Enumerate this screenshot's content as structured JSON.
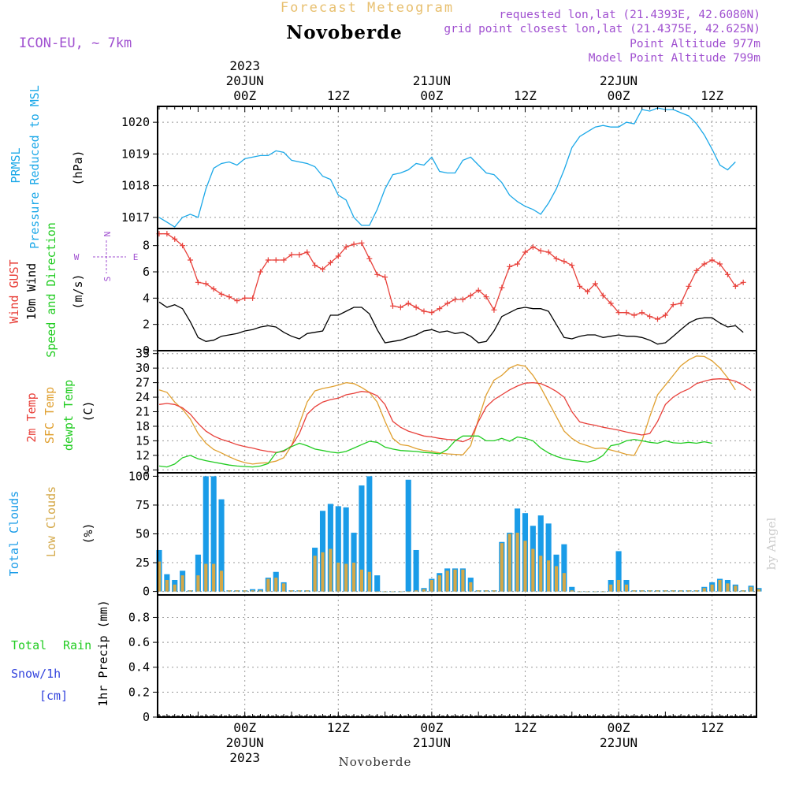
{
  "header": {
    "top_title": "Forecast Meteogram",
    "location": "Novoberde",
    "model": "ICON-EU, ~ 7km",
    "requested": "requested lon,lat (21.4393E, 42.6080N)",
    "grid_point": "grid point closest lon,lat (21.4375E, 42.625N)",
    "point_altitude": "Point Altitude 977m",
    "model_altitude": "Model Point Altitude 799m",
    "footer_location": "Novoberde",
    "watermark": "by Angel"
  },
  "time_axis": {
    "top_labels": [
      {
        "hour": 6,
        "lines": [
          "2023",
          "20JUN",
          "00Z"
        ]
      },
      {
        "hour": 18,
        "lines": [
          "12Z"
        ]
      },
      {
        "hour": 30,
        "lines": [
          "21JUN",
          "00Z"
        ]
      },
      {
        "hour": 42,
        "lines": [
          "12Z"
        ]
      },
      {
        "hour": 54,
        "lines": [
          "22JUN",
          "00Z"
        ]
      },
      {
        "hour": 66,
        "lines": [
          "12Z"
        ]
      }
    ],
    "bottom_labels": [
      {
        "hour": 6,
        "lines": [
          "00Z",
          "20JUN",
          "2023"
        ]
      },
      {
        "hour": 18,
        "lines": [
          "12Z"
        ]
      },
      {
        "hour": 30,
        "lines": [
          "00Z",
          "21JUN"
        ]
      },
      {
        "hour": 42,
        "lines": [
          "12Z"
        ]
      },
      {
        "hour": 54,
        "lines": [
          "00Z",
          "22JUN"
        ]
      },
      {
        "hour": 66,
        "lines": [
          "12Z"
        ]
      }
    ],
    "hour_range": [
      -5.2,
      71.7
    ]
  },
  "panel_labels": {
    "pressure": [
      "PRMSL",
      "Pressure Reduced to MSL",
      "(hPa)"
    ],
    "wind": [
      "Wind GUST",
      "10m Wind",
      "Speed and Direction",
      "(m/s)"
    ],
    "compass": [
      "N",
      "W",
      "E",
      "S"
    ],
    "temp": [
      "2m Temp",
      "SFC Temp",
      "dewpt Temp",
      "(C)"
    ],
    "clouds": [
      "Total Clouds",
      "Low Clouds",
      "(%)"
    ],
    "precip": [
      "Total",
      "Rain",
      "Snow/1h",
      "[cm]",
      "1hr Precip (mm)"
    ]
  },
  "colors": {
    "pressure": "#1ba8e8",
    "gust": "#e8403a",
    "wind": "#000000",
    "temp2m": "#e8403a",
    "sfc": "#e0a030",
    "dewpt": "#22cc22",
    "total_clouds": "#1a9ce8",
    "low_clouds": "#d4a848",
    "rain": "#22cc22",
    "snow": "#3344dd",
    "label_purple": "#a050d0",
    "title_orange": "#e8c070"
  },
  "chart_data": [
    {
      "id": "pressure",
      "type": "line",
      "ylabel": "(hPa)",
      "yticks": [
        1017,
        1018,
        1019,
        1020
      ],
      "ylim": [
        1016.65,
        1020.5
      ],
      "grid": true,
      "series": [
        {
          "name": "PRMSL",
          "x0": -5,
          "dx": 1,
          "values": [
            1017.0,
            1016.85,
            1016.7,
            1017.0,
            1017.1,
            1017.0,
            1017.9,
            1018.55,
            1018.7,
            1018.75,
            1018.65,
            1018.85,
            1018.9,
            1018.95,
            1018.95,
            1019.1,
            1019.05,
            1018.8,
            1018.75,
            1018.7,
            1018.6,
            1018.3,
            1018.2,
            1017.7,
            1017.55,
            1017.0,
            1016.75,
            1016.75,
            1017.25,
            1017.9,
            1018.35,
            1018.4,
            1018.5,
            1018.7,
            1018.65,
            1018.9,
            1018.45,
            1018.4,
            1018.4,
            1018.8,
            1018.9,
            1018.65,
            1018.4,
            1018.35,
            1018.1,
            1017.7,
            1017.5,
            1017.35,
            1017.25,
            1017.1,
            1017.45,
            1017.9,
            1018.5,
            1019.2,
            1019.55,
            1019.7,
            1019.85,
            1019.9,
            1019.85,
            1019.85,
            1020.0,
            1019.95,
            1020.4,
            1020.35,
            1020.45,
            1020.4,
            1020.4,
            1020.3,
            1020.2,
            1019.95,
            1019.6,
            1019.15,
            1018.65,
            1018.5,
            1018.75
          ]
        }
      ]
    },
    {
      "id": "wind",
      "type": "line",
      "ylabel": "(m/s)",
      "yticks": [
        0,
        2,
        4,
        6,
        8
      ],
      "ylim": [
        0,
        9.3
      ],
      "grid": true,
      "series": [
        {
          "name": "Wind GUST",
          "x0": -5,
          "dx": 1,
          "values": [
            8.9,
            8.9,
            8.5,
            8.0,
            6.9,
            5.2,
            5.1,
            4.7,
            4.3,
            4.1,
            3.8,
            4.0,
            4.0,
            6.0,
            6.9,
            6.9,
            6.9,
            7.3,
            7.3,
            7.5,
            6.5,
            6.2,
            6.7,
            7.2,
            7.9,
            8.1,
            8.2,
            7.0,
            5.8,
            5.6,
            3.4,
            3.3,
            3.6,
            3.3,
            3.0,
            2.9,
            3.2,
            3.6,
            3.9,
            3.9,
            4.2,
            4.6,
            4.1,
            3.1,
            4.8,
            6.4,
            6.6,
            7.5,
            7.9,
            7.6,
            7.5,
            7.0,
            6.8,
            6.5,
            4.9,
            4.5,
            5.1,
            4.2,
            3.6,
            2.9,
            2.9,
            2.7,
            2.9,
            2.6,
            2.4,
            2.7,
            3.5,
            3.6,
            4.9,
            6.1,
            6.6,
            6.9,
            6.6,
            5.8,
            4.9,
            5.2
          ]
        },
        {
          "name": "10m Wind",
          "x0": -5,
          "dx": 1,
          "values": [
            3.7,
            3.3,
            3.5,
            3.2,
            2.2,
            1.0,
            0.7,
            0.8,
            1.1,
            1.2,
            1.3,
            1.5,
            1.6,
            1.8,
            1.9,
            1.8,
            1.4,
            1.1,
            0.9,
            1.3,
            1.4,
            1.5,
            2.7,
            2.7,
            3.0,
            3.3,
            3.3,
            2.8,
            1.6,
            0.6,
            0.7,
            0.8,
            1.0,
            1.2,
            1.5,
            1.6,
            1.4,
            1.5,
            1.3,
            1.4,
            1.1,
            0.6,
            0.7,
            1.5,
            2.6,
            2.9,
            3.2,
            3.3,
            3.2,
            3.2,
            3.0,
            2.0,
            1.0,
            0.9,
            1.1,
            1.2,
            1.2,
            1.0,
            1.1,
            1.2,
            1.1,
            1.1,
            1.0,
            0.8,
            0.5,
            0.6,
            1.1,
            1.6,
            2.1,
            2.4,
            2.5,
            2.5,
            2.1,
            1.8,
            1.9,
            1.4
          ]
        }
      ]
    },
    {
      "id": "temperature",
      "type": "line",
      "ylabel": "(C)",
      "yticks": [
        9,
        12,
        15,
        18,
        21,
        24,
        27,
        30,
        33
      ],
      "ylim": [
        8.4,
        33.6
      ],
      "grid": true,
      "series": [
        {
          "name": "2m Temp",
          "x0": -5,
          "dx": 1,
          "values": [
            22.5,
            22.7,
            22.5,
            21.8,
            20.5,
            18.6,
            17.0,
            16.0,
            15.3,
            14.8,
            14.2,
            13.8,
            13.5,
            13.1,
            12.8,
            12.6,
            12.8,
            14.0,
            16.5,
            20.5,
            22.0,
            23.0,
            23.5,
            23.8,
            24.5,
            24.8,
            25.2,
            25.0,
            24.3,
            22.5,
            19.0,
            17.8,
            17.0,
            16.5,
            16.0,
            15.8,
            15.5,
            15.3,
            15.2,
            14.8,
            15.5,
            19.0,
            22.0,
            23.5,
            24.5,
            25.5,
            26.3,
            26.9,
            27.0,
            26.8,
            26.1,
            25.2,
            24.0,
            21.0,
            18.9,
            18.5,
            18.2,
            17.8,
            17.5,
            17.2,
            16.8,
            16.5,
            16.2,
            16.5,
            19.0,
            22.5,
            24.0,
            25.0,
            25.7,
            26.8,
            27.3,
            27.7,
            27.8,
            27.7,
            27.3,
            26.5,
            25.4
          ]
        },
        {
          "name": "SFC Temp",
          "x0": -5,
          "dx": 1,
          "values": [
            25.5,
            25.0,
            23.0,
            21.5,
            19.5,
            16.5,
            14.5,
            13.2,
            12.5,
            11.7,
            11.0,
            10.5,
            10.2,
            10.4,
            10.5,
            10.8,
            11.5,
            14.0,
            18.5,
            23.0,
            25.3,
            25.8,
            26.1,
            26.5,
            27.0,
            26.8,
            26.0,
            25.0,
            23.0,
            19.0,
            15.5,
            14.2,
            14.0,
            13.4,
            13.0,
            12.8,
            12.5,
            12.3,
            12.2,
            12.1,
            14.0,
            19.5,
            24.5,
            27.5,
            28.5,
            30.0,
            30.7,
            30.4,
            28.5,
            26.0,
            23.0,
            20.0,
            17.0,
            15.5,
            14.5,
            14.0,
            13.4,
            13.5,
            13.1,
            12.7,
            12.2,
            12.0,
            15.0,
            20.0,
            24.5,
            26.5,
            28.5,
            30.5,
            31.7,
            32.5,
            32.4,
            31.5,
            30.0,
            28.0,
            25.5
          ]
        },
        {
          "name": "dewpt Temp",
          "x0": -5,
          "dx": 1,
          "values": [
            9.8,
            9.6,
            10.2,
            11.5,
            12.0,
            11.3,
            10.9,
            10.6,
            10.3,
            10.0,
            9.8,
            9.7,
            9.6,
            9.8,
            10.3,
            12.5,
            13.0,
            13.8,
            14.5,
            14.0,
            13.3,
            13.0,
            12.7,
            12.5,
            12.8,
            13.5,
            14.2,
            14.9,
            14.7,
            13.7,
            13.3,
            13.0,
            12.9,
            12.8,
            12.6,
            12.5,
            12.3,
            13.2,
            15.0,
            16.0,
            16.0,
            16.0,
            15.0,
            15.0,
            15.5,
            14.9,
            15.8,
            15.5,
            15.0,
            13.5,
            12.5,
            11.8,
            11.3,
            11.0,
            10.8,
            10.6,
            11.0,
            12.0,
            14.0,
            14.3,
            15.0,
            15.3,
            15.0,
            14.7,
            14.5,
            15.0,
            14.6,
            14.5,
            14.7,
            14.5,
            14.8,
            14.5
          ]
        }
      ]
    },
    {
      "id": "clouds",
      "type": "bar",
      "ylabel": "(%)",
      "yticks": [
        0,
        25,
        50,
        75,
        100
      ],
      "ylim": [
        -3,
        103
      ],
      "grid": true,
      "series": [
        {
          "name": "Total Clouds",
          "x0": -5,
          "dx": 1,
          "values": [
            36,
            15,
            10,
            18,
            1,
            32,
            100,
            100,
            80,
            1,
            1,
            1,
            2,
            2,
            12,
            17,
            8,
            1,
            1,
            1,
            38,
            70,
            76,
            74,
            73,
            51,
            92,
            100,
            14,
            0,
            0,
            0,
            97,
            36,
            3,
            11,
            16,
            20,
            20,
            20,
            12,
            1,
            1,
            1,
            43,
            51,
            72,
            68,
            57,
            66,
            59,
            32,
            41,
            4,
            0,
            0,
            0,
            0,
            10,
            35,
            10,
            1,
            1,
            1,
            1,
            1,
            1,
            1,
            1,
            1,
            4,
            8,
            11,
            10,
            6,
            1,
            5,
            3
          ]
        },
        {
          "name": "Low Clouds",
          "x0": -5,
          "dx": 1,
          "values": [
            26,
            10,
            6,
            14,
            1,
            14,
            24,
            24,
            18,
            1,
            1,
            1,
            1,
            1,
            11,
            12,
            7,
            1,
            1,
            1,
            31,
            34,
            37,
            25,
            24,
            25,
            19,
            17,
            0,
            0,
            0,
            0,
            0,
            1,
            2,
            10,
            14,
            18,
            19,
            19,
            8,
            1,
            1,
            1,
            42,
            50,
            51,
            44,
            37,
            31,
            27,
            22,
            16,
            1,
            0,
            0,
            0,
            0,
            6,
            10,
            6,
            1,
            1,
            1,
            1,
            1,
            1,
            1,
            1,
            1,
            3,
            6,
            10,
            7,
            5,
            1,
            4,
            2
          ]
        }
      ]
    },
    {
      "id": "precip",
      "type": "bar",
      "ylabel": "1hr Precip (mm)",
      "yticks": [
        0,
        0.2,
        0.4,
        0.6,
        0.8
      ],
      "ylim": [
        0,
        0.98
      ],
      "grid": true,
      "series": [
        {
          "name": "Total Rain",
          "values": []
        },
        {
          "name": "Snow/1h",
          "values": []
        }
      ]
    }
  ]
}
